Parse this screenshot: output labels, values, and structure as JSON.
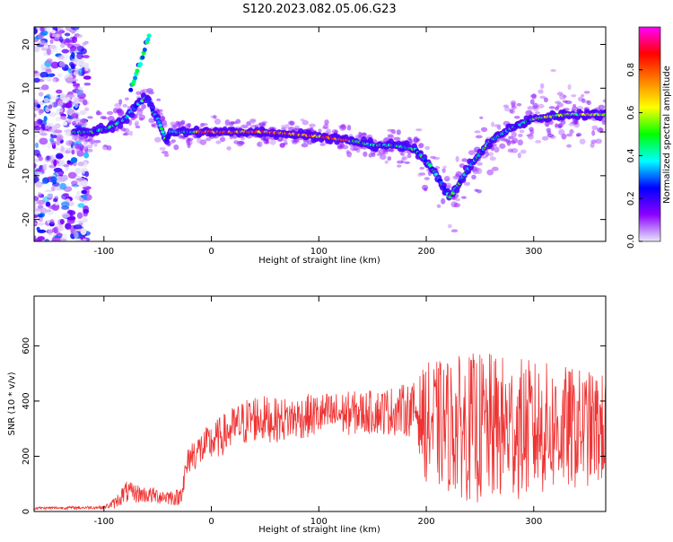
{
  "title": "S120.2023.082.05.06.G23",
  "chart_data": [
    {
      "type": "heatmap",
      "xlabel": "Height of straight line (km)",
      "ylabel": "Frequency (Hz)",
      "xlim": [
        -165,
        367
      ],
      "ylim": [
        -25,
        24
      ],
      "xticks": [
        -100,
        0,
        100,
        200,
        300
      ],
      "yticks": [
        -20,
        -10,
        0,
        10,
        20
      ],
      "colorbar": {
        "label": "Normalized spectral amplitude",
        "range": [
          0,
          1
        ],
        "ticks": [
          "0.0",
          "0.2",
          "0.4",
          "0.6",
          "0.8"
        ],
        "colors": [
          "#e8e8f8",
          "#8b00ff",
          "#0000ff",
          "#00ffff",
          "#00ff00",
          "#ffff00",
          "#ff8000",
          "#ff0000",
          "#ff00ff"
        ]
      },
      "ridge": {
        "x": [
          -130,
          -110,
          -95,
          -80,
          -70,
          -60,
          -55,
          -50,
          -42,
          -38,
          -30,
          -20,
          0,
          50,
          100,
          130,
          150,
          170,
          190,
          205,
          215,
          222,
          230,
          240,
          260,
          280,
          300,
          330,
          367
        ],
        "frequency": [
          0,
          0,
          1,
          3,
          6,
          8,
          5,
          3,
          -2,
          0,
          0,
          0,
          0,
          0,
          -1,
          -2,
          -3,
          -3,
          -4,
          -8,
          -12,
          -15,
          -12,
          -8,
          -2,
          1,
          3,
          4,
          4
        ]
      }
    },
    {
      "type": "line",
      "xlabel": "Height of straight line (km)",
      "ylabel": "SNR (10 * v/v)",
      "xlim": [
        -165,
        367
      ],
      "ylim": [
        0,
        780
      ],
      "xticks": [
        -100,
        0,
        100,
        200,
        300
      ],
      "yticks": [
        0,
        200,
        400,
        600
      ],
      "color": "#ee3333",
      "envelope": {
        "x": [
          -165,
          -100,
          -90,
          -80,
          -60,
          -30,
          -25,
          -20,
          0,
          20,
          40,
          60,
          100,
          150,
          190,
          200,
          250,
          300,
          367
        ],
        "mean": [
          12,
          15,
          30,
          70,
          60,
          50,
          120,
          200,
          250,
          300,
          340,
          330,
          350,
          360,
          370,
          320,
          300,
          300,
          300
        ],
        "spread": [
          5,
          6,
          20,
          40,
          30,
          30,
          60,
          60,
          70,
          80,
          90,
          80,
          80,
          80,
          100,
          220,
          280,
          250,
          200
        ]
      }
    }
  ]
}
